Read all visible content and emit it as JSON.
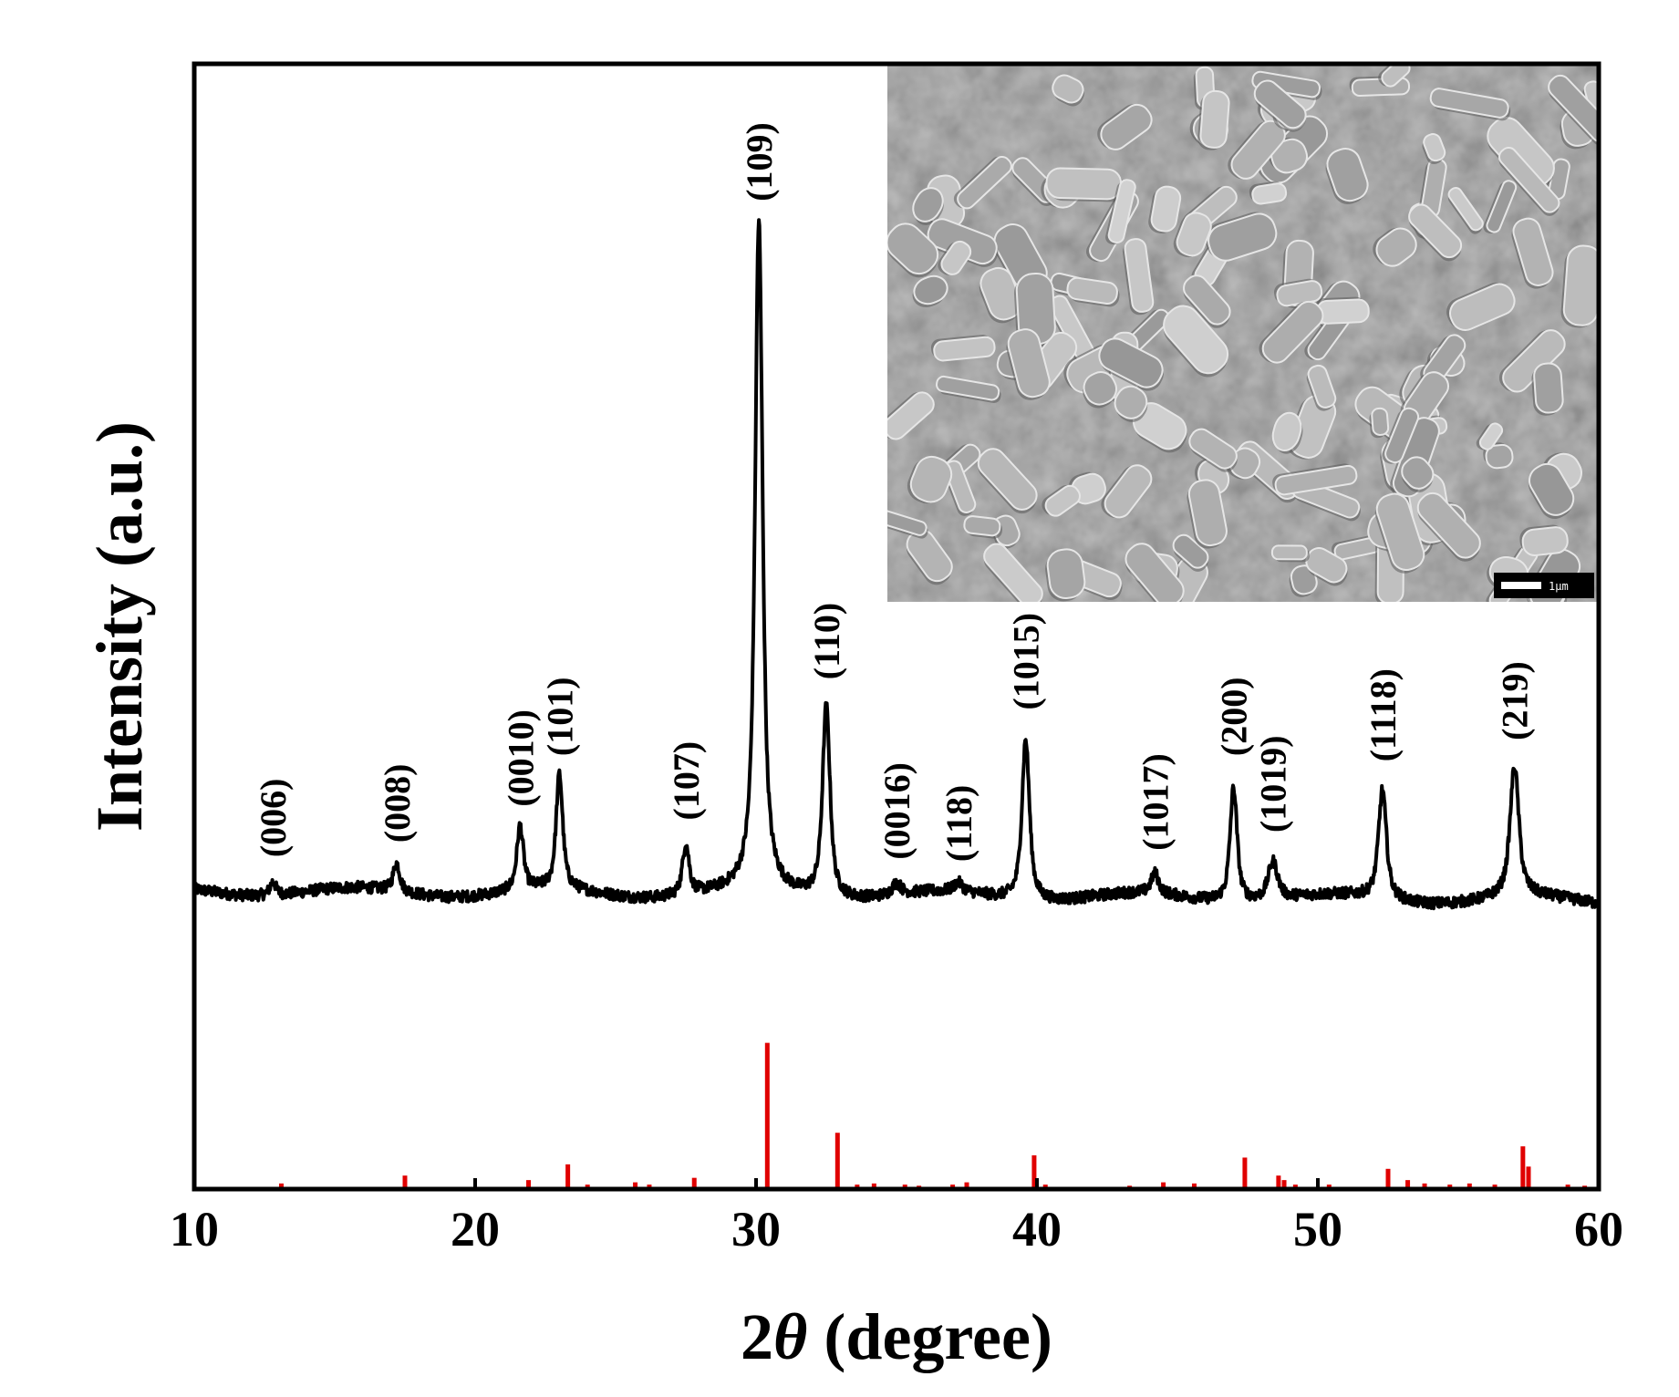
{
  "chart_data": {
    "type": "line",
    "xlabel_prefix": "2",
    "xlabel_symbol": "θ",
    "xlabel_suffix": " (degree)",
    "ylabel": "Intensity (a.u.)",
    "xlim": [
      10,
      60
    ],
    "ylim": [
      0,
      1
    ],
    "x_ticks": [
      "10",
      "20",
      "30",
      "40",
      "50",
      "60"
    ],
    "x_tick_values": [
      10,
      20,
      30,
      40,
      50,
      60
    ],
    "colors": {
      "pattern": "#000000",
      "reference": "#e00000",
      "frame": "#000000"
    },
    "baseline": 0.265,
    "peaks": [
      {
        "label": "(006)",
        "x": 12.8,
        "height": 0.012,
        "width": 0.14
      },
      {
        "label": "(008)",
        "x": 17.2,
        "height": 0.025,
        "width": 0.15
      },
      {
        "label": "(0010)",
        "x": 21.6,
        "height": 0.057,
        "width": 0.15
      },
      {
        "label": "(101)",
        "x": 23.0,
        "height": 0.102,
        "width": 0.15
      },
      {
        "label": "(107)",
        "x": 27.5,
        "height": 0.045,
        "width": 0.15
      },
      {
        "label": "(109)",
        "x": 30.1,
        "height": 0.595,
        "width": 0.17
      },
      {
        "label": "(110)",
        "x": 32.5,
        "height": 0.17,
        "width": 0.17
      },
      {
        "label": "(0016)",
        "x": 35.0,
        "height": 0.01,
        "width": 0.2
      },
      {
        "label": "(118)",
        "x": 37.2,
        "height": 0.008,
        "width": 0.2
      },
      {
        "label": "(1015)",
        "x": 39.6,
        "height": 0.143,
        "width": 0.17
      },
      {
        "label": "(1017)",
        "x": 44.2,
        "height": 0.018,
        "width": 0.17
      },
      {
        "label": "(200)",
        "x": 47.0,
        "height": 0.102,
        "width": 0.16
      },
      {
        "label": "(1019)",
        "x": 48.4,
        "height": 0.034,
        "width": 0.22
      },
      {
        "label": "(1118)",
        "x": 52.3,
        "height": 0.097,
        "width": 0.18
      },
      {
        "label": "(219)",
        "x": 57.0,
        "height": 0.116,
        "width": 0.2
      }
    ],
    "reference_lines": [
      {
        "x": 13.1,
        "h": 0.005
      },
      {
        "x": 17.5,
        "h": 0.012
      },
      {
        "x": 21.9,
        "h": 0.008
      },
      {
        "x": 23.3,
        "h": 0.022
      },
      {
        "x": 24.0,
        "h": 0.004
      },
      {
        "x": 25.7,
        "h": 0.006
      },
      {
        "x": 26.2,
        "h": 0.004
      },
      {
        "x": 27.8,
        "h": 0.01
      },
      {
        "x": 30.4,
        "h": 0.13
      },
      {
        "x": 32.9,
        "h": 0.05
      },
      {
        "x": 33.6,
        "h": 0.004
      },
      {
        "x": 34.2,
        "h": 0.005
      },
      {
        "x": 35.3,
        "h": 0.004
      },
      {
        "x": 35.8,
        "h": 0.003
      },
      {
        "x": 37.0,
        "h": 0.004
      },
      {
        "x": 37.5,
        "h": 0.006
      },
      {
        "x": 39.9,
        "h": 0.03
      },
      {
        "x": 40.3,
        "h": 0.004
      },
      {
        "x": 43.3,
        "h": 0.003
      },
      {
        "x": 44.5,
        "h": 0.006
      },
      {
        "x": 45.6,
        "h": 0.005
      },
      {
        "x": 47.4,
        "h": 0.028
      },
      {
        "x": 48.6,
        "h": 0.012
      },
      {
        "x": 48.8,
        "h": 0.008
      },
      {
        "x": 49.2,
        "h": 0.004
      },
      {
        "x": 50.4,
        "h": 0.004
      },
      {
        "x": 52.5,
        "h": 0.018
      },
      {
        "x": 53.2,
        "h": 0.008
      },
      {
        "x": 53.8,
        "h": 0.005
      },
      {
        "x": 54.7,
        "h": 0.004
      },
      {
        "x": 55.4,
        "h": 0.005
      },
      {
        "x": 56.3,
        "h": 0.004
      },
      {
        "x": 57.3,
        "h": 0.038
      },
      {
        "x": 57.5,
        "h": 0.02
      },
      {
        "x": 58.9,
        "h": 0.004
      },
      {
        "x": 59.5,
        "h": 0.003
      }
    ],
    "inset": {
      "description_label": "SEM micrograph",
      "scale_bar_label": "1μm"
    }
  }
}
